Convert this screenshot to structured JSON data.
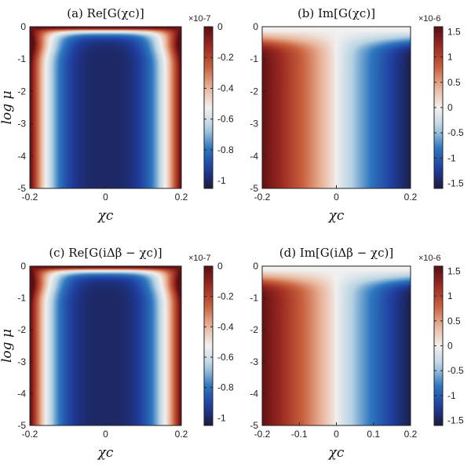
{
  "chart_data": [
    {
      "type": "heatmap",
      "title": "(a) Re[G(χc)]",
      "xlabel": "χc",
      "ylabel": "log μ",
      "xlim": [
        -0.2,
        0.2
      ],
      "ylim": [
        -5,
        0
      ],
      "x_ticks": [
        "-0.2",
        "0",
        "0.2"
      ],
      "y_ticks": [
        "0",
        "-1",
        "-2",
        "-3",
        "-4",
        "-5"
      ],
      "colorbar": {
        "exponent": "×10-7",
        "range": [
          -1.05,
          0
        ],
        "ticks": [
          "0",
          "-0.2",
          "-0.4",
          "-0.6",
          "-0.8",
          "-1"
        ],
        "tick_values": [
          0,
          -0.2,
          -0.4,
          -0.6,
          -0.8,
          -1
        ]
      },
      "quantity": "real"
    },
    {
      "type": "heatmap",
      "title": "(b) Im[G(χc)]",
      "xlabel": "χc",
      "ylabel": "",
      "xlim": [
        -0.2,
        0.2
      ],
      "ylim": [
        -5,
        0
      ],
      "x_ticks": [
        "-0.2",
        "0",
        "0.2"
      ],
      "y_ticks": [
        "0",
        "-1",
        "-2",
        "-3",
        "-4",
        "-5"
      ],
      "colorbar": {
        "exponent": "×10-6",
        "range": [
          -1.6,
          1.6
        ],
        "ticks": [
          "1.5",
          "1",
          "0.5",
          "0",
          "-0.5",
          "-1",
          "-1.5"
        ],
        "tick_values": [
          1.5,
          1,
          0.5,
          0,
          -0.5,
          -1,
          -1.5
        ]
      },
      "quantity": "imag"
    },
    {
      "type": "heatmap",
      "title": "(c) Re[G(iΔβ − χc)]",
      "xlabel": "χc",
      "ylabel": "log μ",
      "xlim": [
        -0.2,
        0.2
      ],
      "ylim": [
        -5,
        0
      ],
      "x_ticks": [
        "-0.2",
        "0",
        "0.2"
      ],
      "y_ticks": [
        "0",
        "-1",
        "-2",
        "-3",
        "-4",
        "-5"
      ],
      "colorbar": {
        "exponent": "×10-7",
        "range": [
          -1.05,
          0
        ],
        "ticks": [
          "0",
          "-0.2",
          "-0.4",
          "-0.6",
          "-0.8",
          "-1"
        ],
        "tick_values": [
          0,
          -0.2,
          -0.4,
          -0.6,
          -0.8,
          -1
        ]
      },
      "quantity": "real"
    },
    {
      "type": "heatmap",
      "title": "(d) Im[G(iΔβ − χc)]",
      "xlabel": "χc",
      "ylabel": "",
      "xlim": [
        -0.2,
        0.2
      ],
      "ylim": [
        -5,
        0
      ],
      "x_ticks": [
        "-0.2",
        "-0.1",
        "0",
        "0.1",
        "0.2"
      ],
      "y_ticks": [
        "0",
        "-1",
        "-2",
        "-3",
        "-4",
        "-5"
      ],
      "colorbar": {
        "exponent": "×10-6",
        "range": [
          -1.6,
          1.6
        ],
        "ticks": [
          "1.5",
          "1",
          "0.5",
          "0",
          "-0.5",
          "-1",
          "-1.5"
        ],
        "tick_values": [
          1.5,
          1,
          0.5,
          0,
          -0.5,
          -1,
          -1.5
        ]
      },
      "quantity": "imag"
    }
  ],
  "colormap": [
    "#1c1a40",
    "#1f3fa0",
    "#2e78c0",
    "#b8d3e3",
    "#f2f1f0",
    "#e9b49a",
    "#c8603c",
    "#9c2a22",
    "#5a0e12"
  ]
}
